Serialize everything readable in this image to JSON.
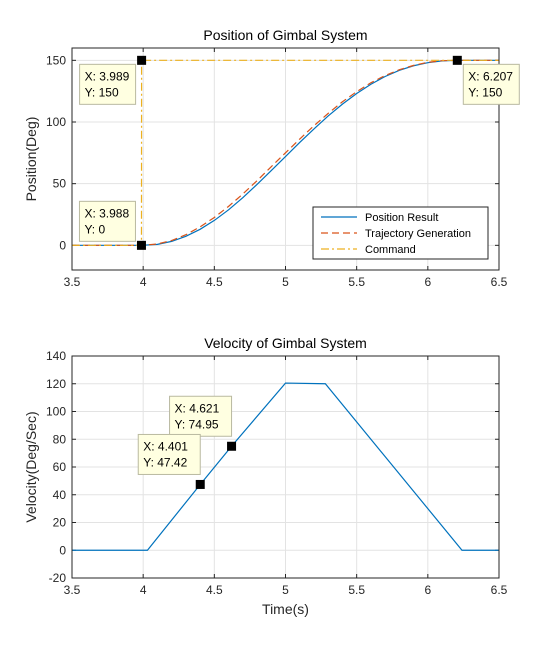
{
  "chart_data": [
    {
      "type": "line",
      "title": "Position of Gimbal System",
      "xlabel": "",
      "ylabel": "Position(Deg)",
      "xlim": [
        3.5,
        6.5
      ],
      "ylim": [
        -20,
        160
      ],
      "xticks": [
        "3.5",
        "4",
        "4.5",
        "5",
        "5.5",
        "6",
        "6.5"
      ],
      "yticks": [
        "0",
        "50",
        "100",
        "150"
      ],
      "grid": true,
      "legend_position": "bottom-right",
      "series": [
        {
          "name": "Position Result",
          "style": "solid",
          "color": "#0072BD",
          "x": [
            3.5,
            3.988,
            4.1,
            4.2,
            4.3,
            4.4,
            4.5,
            4.6,
            4.7,
            4.8,
            4.9,
            5.0,
            5.1,
            5.2,
            5.3,
            5.4,
            5.5,
            5.6,
            5.7,
            5.8,
            5.9,
            6.0,
            6.1,
            6.207,
            6.5
          ],
          "y": [
            0,
            0,
            0.8,
            3.2,
            7.3,
            13,
            20.2,
            28.8,
            38.6,
            49.4,
            60.6,
            72,
            83.4,
            94.4,
            104.9,
            114.5,
            123.1,
            130.6,
            136.9,
            141.9,
            145.6,
            148.1,
            149.5,
            150,
            150
          ]
        },
        {
          "name": "Trajectory Generation",
          "style": "dashed",
          "color": "#D95319",
          "x": [
            3.5,
            3.988,
            4.1,
            4.2,
            4.3,
            4.4,
            4.5,
            4.6,
            4.7,
            4.8,
            4.9,
            5.0,
            5.1,
            5.2,
            5.3,
            5.4,
            5.5,
            5.6,
            5.7,
            5.8,
            5.9,
            6.0,
            6.1,
            6.2,
            6.5
          ],
          "y": [
            0,
            0,
            1.1,
            3.9,
            8.6,
            15,
            22.6,
            31.6,
            41.6,
            52.4,
            63.8,
            75,
            86.2,
            97,
            107,
            116.4,
            124.6,
            131.8,
            137.7,
            142.4,
            145.9,
            148.4,
            149.7,
            150,
            150
          ]
        },
        {
          "name": "Command",
          "style": "dashdot",
          "color": "#EDB120",
          "x": [
            3.5,
            3.988,
            3.989,
            6.5
          ],
          "y": [
            0,
            0,
            150,
            150
          ]
        }
      ],
      "annotations": [
        {
          "x": 3.989,
          "y": 150,
          "lines": [
            "X: 3.989",
            "Y: 150"
          ]
        },
        {
          "x": 3.988,
          "y": 0,
          "lines": [
            "X: 3.988",
            "Y: 0"
          ]
        },
        {
          "x": 6.207,
          "y": 150,
          "lines": [
            "X: 6.207",
            "Y: 150"
          ]
        }
      ]
    },
    {
      "type": "line",
      "title": "Velocity of Gimbal System",
      "xlabel": "Time(s)",
      "ylabel": "Velocity(Deg/Sec)",
      "xlim": [
        3.5,
        6.5
      ],
      "ylim": [
        -20,
        140
      ],
      "xticks": [
        "3.5",
        "4",
        "4.5",
        "5",
        "5.5",
        "6",
        "6.5"
      ],
      "yticks": [
        "-20",
        "0",
        "20",
        "40",
        "60",
        "80",
        "100",
        "120",
        "140"
      ],
      "grid": true,
      "series": [
        {
          "style": "solid",
          "color": "#0072BD",
          "x": [
            3.5,
            4.03,
            4.401,
            4.621,
            5.0,
            5.28,
            6.24,
            6.5
          ],
          "y": [
            0,
            0,
            47.42,
            74.95,
            120.5,
            120,
            0,
            0
          ]
        }
      ],
      "annotations": [
        {
          "x": 4.621,
          "y": 74.95,
          "lines": [
            "X: 4.621",
            "Y: 74.95"
          ]
        },
        {
          "x": 4.401,
          "y": 47.42,
          "lines": [
            "X: 4.401",
            "Y: 47.42"
          ]
        }
      ]
    }
  ]
}
